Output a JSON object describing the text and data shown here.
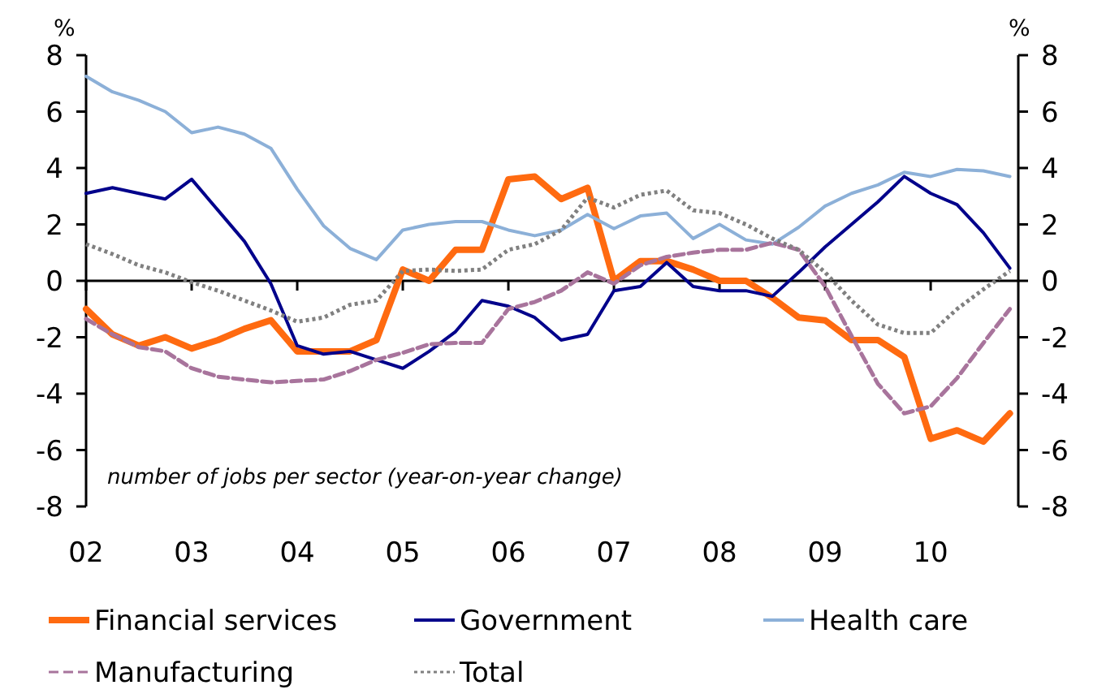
{
  "chart_data": {
    "type": "line",
    "ylabel": "%",
    "y2label": "%",
    "annotations": [
      "number of jobs per sector  (year-on-year change)"
    ],
    "x": [
      2002,
      2002.25,
      2002.5,
      2002.75,
      2003,
      2003.25,
      2003.5,
      2003.75,
      2004,
      2004.25,
      2004.5,
      2004.75,
      2005,
      2005.25,
      2005.5,
      2005.75,
      2006,
      2006.25,
      2006.5,
      2006.75,
      2007,
      2007.25,
      2007.5,
      2007.75,
      2008,
      2008.25,
      2008.5,
      2008.75,
      2009,
      2009.25,
      2009.5,
      2009.75,
      2010,
      2010.25,
      2010.5,
      2010.75
    ],
    "series": [
      {
        "name": "Financial services",
        "color": "#ff6a10",
        "values": [
          -1.0,
          -1.9,
          -2.3,
          -2.0,
          -2.4,
          -2.1,
          -1.7,
          -1.4,
          -2.5,
          -2.5,
          -2.5,
          -2.1,
          0.4,
          0.0,
          1.1,
          1.1,
          3.6,
          3.7,
          2.9,
          3.3,
          0.0,
          0.7,
          0.7,
          0.4,
          0.0,
          0.0,
          -0.6,
          -1.3,
          -1.4,
          -2.1,
          -2.1,
          -2.7,
          -5.6,
          -5.3,
          -5.7,
          -4.7
        ]
      },
      {
        "name": "Government",
        "color": "#00008b",
        "values": [
          3.1,
          3.3,
          3.1,
          2.9,
          3.6,
          2.5,
          1.4,
          -0.1,
          -2.3,
          -2.6,
          -2.5,
          -2.8,
          -3.1,
          -2.5,
          -1.8,
          -0.7,
          -0.9,
          -1.3,
          -2.1,
          -1.9,
          -0.35,
          -0.2,
          0.65,
          -0.2,
          -0.35,
          -0.35,
          -0.55,
          0.3,
          1.2,
          2.0,
          2.8,
          3.7,
          3.1,
          2.7,
          1.7,
          0.45
        ]
      },
      {
        "name": "Health care",
        "color": "#8cb0d8",
        "values": [
          7.25,
          6.7,
          6.4,
          6.0,
          5.25,
          5.45,
          5.2,
          4.7,
          3.25,
          1.95,
          1.15,
          0.75,
          1.8,
          2.0,
          2.1,
          2.1,
          1.8,
          1.6,
          1.8,
          2.35,
          1.85,
          2.3,
          2.4,
          1.5,
          2.0,
          1.45,
          1.3,
          1.9,
          2.65,
          3.1,
          3.4,
          3.85,
          3.7,
          3.95,
          3.9,
          3.7
        ]
      },
      {
        "name": "Manufacturing",
        "color": "#a8749c",
        "line_style": "dashed",
        "values": [
          -1.35,
          -1.9,
          -2.35,
          -2.5,
          -3.1,
          -3.4,
          -3.5,
          -3.6,
          -3.55,
          -3.5,
          -3.2,
          -2.8,
          -2.55,
          -2.25,
          -2.2,
          -2.2,
          -1.0,
          -0.75,
          -0.35,
          0.3,
          -0.1,
          0.55,
          0.85,
          1.0,
          1.1,
          1.1,
          1.35,
          1.1,
          -0.2,
          -1.95,
          -3.65,
          -4.7,
          -4.45,
          -3.45,
          -2.2,
          -1.0
        ]
      },
      {
        "name": "Total",
        "color": "#808080",
        "line_style": "dotted",
        "values": [
          1.3,
          0.95,
          0.55,
          0.3,
          -0.05,
          -0.35,
          -0.7,
          -1.05,
          -1.45,
          -1.3,
          -0.85,
          -0.7,
          0.35,
          0.4,
          0.35,
          0.4,
          1.1,
          1.3,
          1.8,
          2.95,
          2.6,
          3.05,
          3.2,
          2.5,
          2.4,
          2.0,
          1.5,
          1.1,
          0.3,
          -0.7,
          -1.55,
          -1.85,
          -1.85,
          -1.0,
          -0.3,
          0.35
        ]
      }
    ],
    "xlim": [
      2002,
      2010.83
    ],
    "xticks": [
      {
        "value": 2002,
        "label": "02"
      },
      {
        "value": 2003,
        "label": "03"
      },
      {
        "value": 2004,
        "label": "04"
      },
      {
        "value": 2005,
        "label": "05"
      },
      {
        "value": 2006,
        "label": "06"
      },
      {
        "value": 2007,
        "label": "07"
      },
      {
        "value": 2008,
        "label": "08"
      },
      {
        "value": 2009,
        "label": "09"
      },
      {
        "value": 2010,
        "label": "10"
      }
    ],
    "ylim": [
      -8,
      8
    ],
    "yticks": [
      -8,
      -6,
      -4,
      -2,
      0,
      2,
      4,
      6,
      8
    ],
    "y2lim": [
      -8,
      8
    ],
    "y2ticks": [
      -8,
      -6,
      -4,
      -2,
      0,
      2,
      4,
      6,
      8
    ],
    "legend": "bottom",
    "marker": "none",
    "line_style": "solid"
  }
}
